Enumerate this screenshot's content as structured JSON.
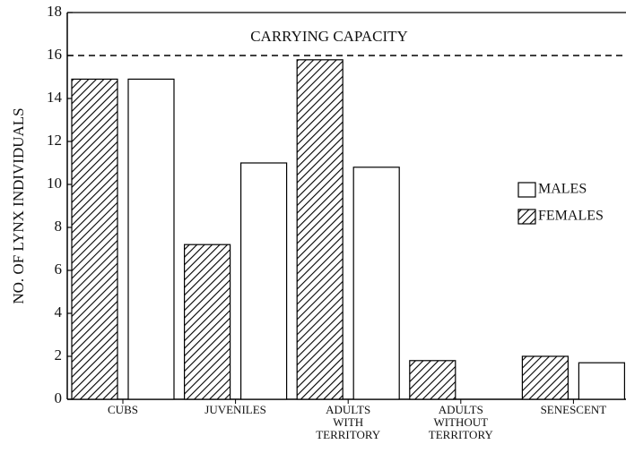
{
  "chart_data": {
    "type": "bar",
    "y_label": "NO. OF LYNX INDIVIDUALS",
    "categories": [
      [
        "CUBS"
      ],
      [
        "JUVENILES"
      ],
      [
        "ADULTS",
        "WITH",
        "TERRITORY"
      ],
      [
        "ADULTS",
        "WITHOUT",
        "TERRITORY"
      ],
      [
        "SENESCENT"
      ]
    ],
    "series": [
      {
        "name": "FEMALES",
        "color": "#000000",
        "hatch": true,
        "values": [
          14.9,
          7.2,
          15.8,
          1.8,
          2.0
        ]
      },
      {
        "name": "MALES",
        "color": "#ffffff",
        "hatch": false,
        "values": [
          14.9,
          11.0,
          10.8,
          0,
          1.7
        ]
      }
    ],
    "reference_line": {
      "value": 16,
      "label": "CARRYING CAPACITY"
    },
    "ylim": [
      0,
      18
    ],
    "yticks": [
      0,
      2,
      4,
      6,
      8,
      10,
      12,
      14,
      16,
      18
    ],
    "grid": false
  }
}
